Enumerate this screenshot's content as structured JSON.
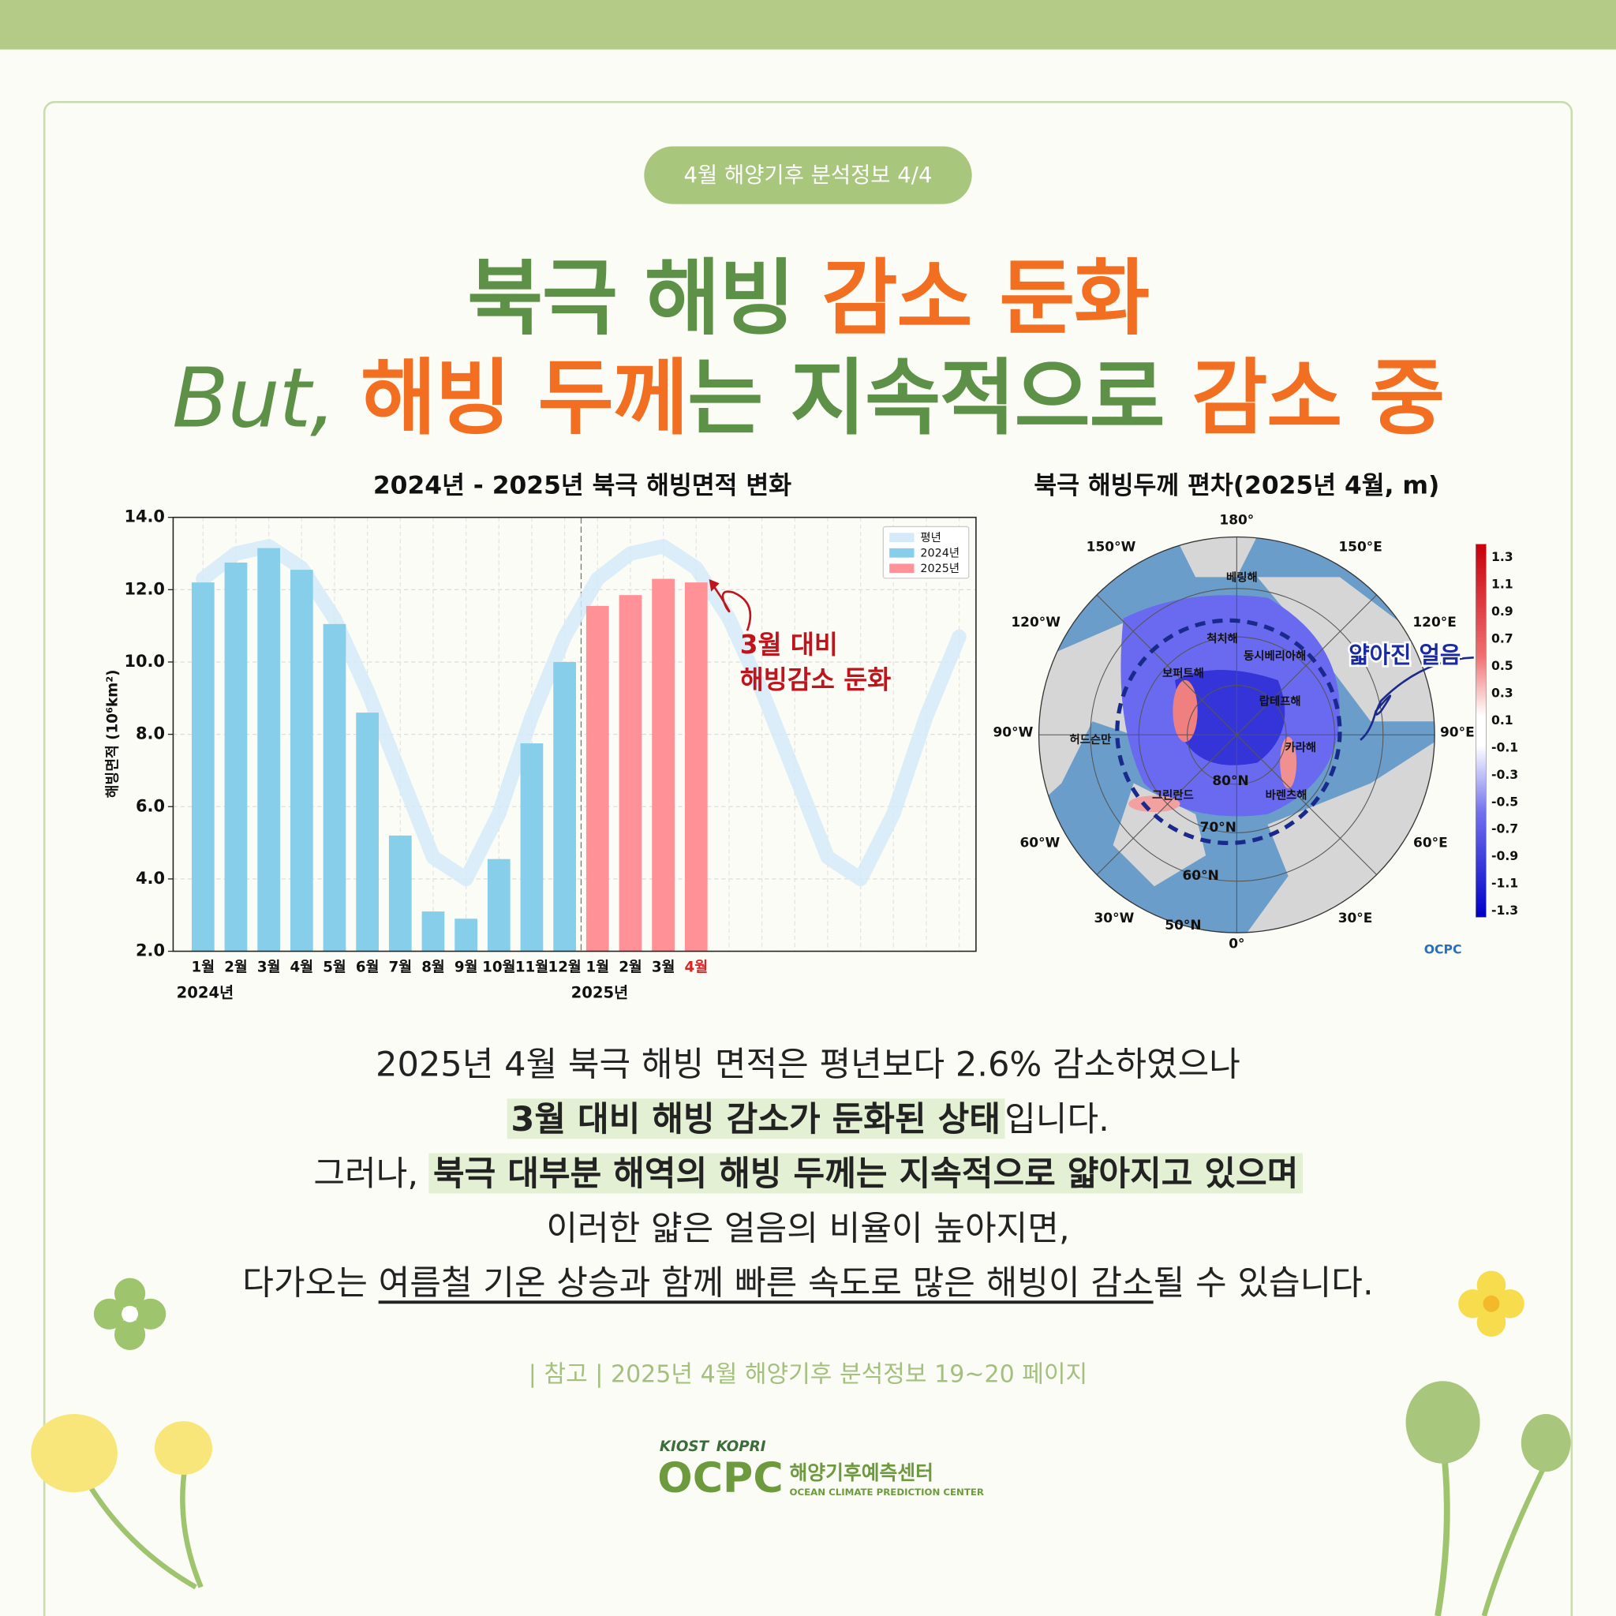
{
  "header": {
    "badge": "4월 해양기후 분석정보 4/4",
    "title_line1": [
      "북극 해빙 ",
      "감소 둔화"
    ],
    "title_line2": [
      "But, ",
      "해빙 두께",
      "는 지속적으로 ",
      "감소 중"
    ]
  },
  "chart_data": {
    "type": "bar",
    "title": "2024년 - 2025년 북극 해빙면적 변화",
    "y_label": "해빙면적 (10⁶km²)",
    "categories": [
      "1월",
      "2월",
      "3월",
      "4월",
      "5월",
      "6월",
      "7월",
      "8월",
      "9월",
      "10월",
      "11월",
      "12월",
      "1월",
      "2월",
      "3월",
      "4월",
      null,
      null,
      null,
      null,
      null,
      null,
      null,
      null
    ],
    "year_labels": [
      "2024년",
      "2025년"
    ],
    "series": [
      {
        "name": "평년",
        "color": "#d4eaf8",
        "kind": "line",
        "values": [
          12.3,
          13.0,
          13.2,
          12.6,
          11.2,
          9.2,
          6.9,
          4.6,
          4.0,
          5.8,
          8.5,
          10.7,
          12.3,
          13.0,
          13.2,
          12.6,
          11.2,
          9.2,
          6.9,
          4.6,
          4.0,
          5.8,
          8.5,
          10.7
        ]
      },
      {
        "name": "2024년",
        "color": "#87ceeb",
        "values": [
          12.2,
          12.75,
          13.15,
          12.55,
          11.05,
          8.6,
          5.2,
          3.1,
          2.9,
          4.55,
          7.75,
          10.0,
          null,
          null,
          null,
          null,
          null,
          null,
          null,
          null,
          null,
          null,
          null,
          null
        ]
      },
      {
        "name": "2025년",
        "color": "#ff9197",
        "values": [
          null,
          null,
          null,
          null,
          null,
          null,
          null,
          null,
          null,
          null,
          null,
          null,
          11.55,
          11.85,
          12.3,
          12.2,
          null,
          null,
          null,
          null,
          null,
          null,
          null,
          null
        ]
      }
    ],
    "ylim": [
      2,
      14
    ],
    "yticks": [
      {
        "value": 2,
        "label": "2.0"
      },
      {
        "value": 4,
        "label": "4.0"
      },
      {
        "value": 6,
        "label": "6.0"
      },
      {
        "value": 8,
        "label": "8.0"
      },
      {
        "value": 10,
        "label": "10.0"
      },
      {
        "value": 12,
        "label": "12.0"
      },
      {
        "value": 14,
        "label": "14.0"
      }
    ],
    "grid": true,
    "legend": "upper right",
    "highlight_color": "#d62728",
    "highlight_category": 15,
    "annotation": [
      "3월 대비",
      "해빙감소 둔화"
    ],
    "annotation_color": "#c0141c"
  },
  "map": {
    "title": "북극 해빙두께 편차(2025년 4월, m)",
    "lon_labels": [
      "180°",
      "150°E",
      "120°E",
      "90°E",
      "60°E",
      "30°E",
      "0°",
      "30°W",
      "60°W",
      "90°W",
      "120°W",
      "150°W"
    ],
    "lat_labels": [
      "80°N",
      "70°N",
      "60°N",
      "50°N"
    ],
    "regions": [
      "베링해",
      "척치해",
      "동시베리아해",
      "보퍼트해",
      "랍테프해",
      "허드슨만",
      "카라해",
      "그린란드",
      "바렌츠해"
    ],
    "colorbar_labels": [
      "1.3",
      "1.1",
      "0.9",
      "0.7",
      "0.5",
      "0.3",
      "0.1",
      "-0.1",
      "-0.3",
      "-0.5",
      "-0.7",
      "-0.9",
      "-1.1",
      "-1.3"
    ],
    "annotation": "얇아진 얼음",
    "credit": "OCPC"
  },
  "body": {
    "line1": "2025년 4월 북극 해빙 면적은 평년보다 2.6% 감소하였으나",
    "line2": [
      "3월 대비 해빙 감소가 둔화된 상태",
      "입니다."
    ],
    "line3": [
      "그러나, ",
      "북극 대부분 해역의 해빙 두께는 지속적으로 얇아지고 있으며"
    ],
    "line4": "이러한 얇은 얼음의 비율이 높아지면,",
    "line5": [
      "다가오는 ",
      "여름철 기온 상승과 함께 빠른 속도로 많은 해빙이 감소",
      "될 수 있습니다."
    ]
  },
  "footer": {
    "reference": "| 참고 |  2025년 4월 해양기후 분석정보 19~20 페이지",
    "logo_small": [
      "KIOST",
      "KOPRI"
    ],
    "logo": "OCPC",
    "logo_kr": "해양기후예측센터",
    "logo_en": "OCEAN CLIMATE PREDICTION CENTER"
  }
}
